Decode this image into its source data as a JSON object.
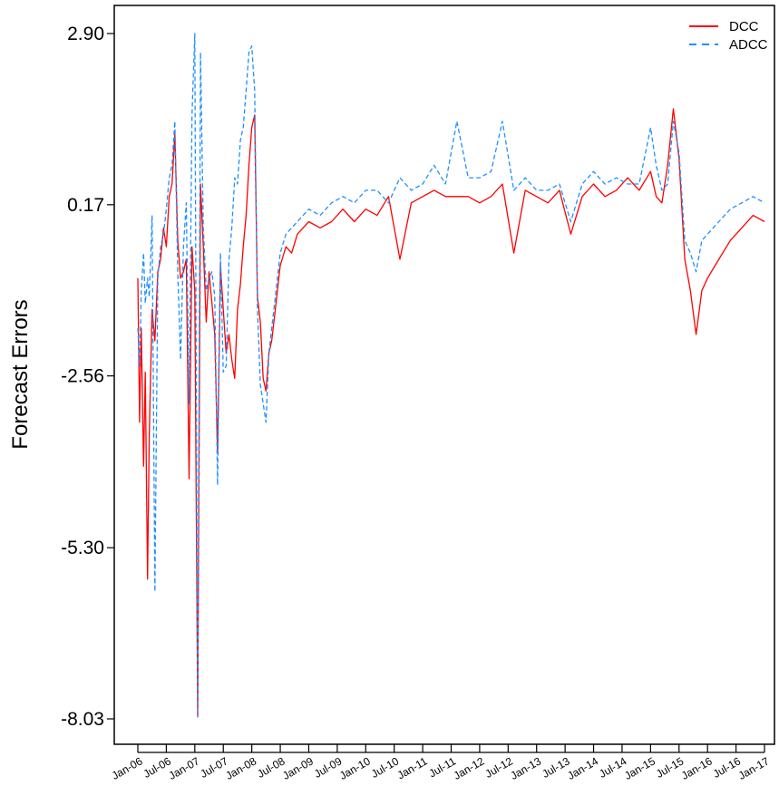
{
  "chart_data": {
    "type": "line",
    "title": "",
    "xlabel": "",
    "ylabel": "Forecast Errors",
    "ylim": [
      -8.6,
      3.4
    ],
    "yticks": [
      "2.90",
      "0.17",
      "-2.56",
      "-5.30",
      "-8.03"
    ],
    "ytick_values": [
      2.9,
      0.17,
      -2.56,
      -5.3,
      -8.03
    ],
    "xticks": [
      "Jan-06",
      "Jul-06",
      "Jan-07",
      "Jul-07",
      "Jan-08",
      "Jul-08",
      "Jan-09",
      "Jul-09",
      "Jan-10",
      "Jul-10",
      "Jan-11",
      "Jul-11",
      "Jan-12",
      "Jul-12",
      "Jan-13",
      "Jul-13",
      "Jan-14",
      "Jul-14",
      "Jan-15",
      "Jul-15",
      "Jan-16",
      "Jul-16",
      "Jan-17"
    ],
    "legend": "top-right",
    "grid": false,
    "series": [
      {
        "name": "DCC",
        "color": "#ff0000",
        "style": "solid",
        "t": [
          0,
          0.03,
          0.06,
          0.1,
          0.13,
          0.17,
          0.2,
          0.25,
          0.3,
          0.35,
          0.4,
          0.45,
          0.5,
          0.55,
          0.6,
          0.65,
          0.7,
          0.75,
          0.8,
          0.85,
          0.9,
          0.95,
          1.0,
          1.05,
          1.1,
          1.15,
          1.2,
          1.25,
          1.3,
          1.35,
          1.4,
          1.45,
          1.5,
          1.55,
          1.6,
          1.65,
          1.7,
          1.75,
          1.8,
          1.85,
          1.9,
          1.95,
          2.0,
          2.05,
          2.1,
          2.15,
          2.2,
          2.25,
          2.3,
          2.35,
          2.4,
          2.5,
          2.6,
          2.7,
          2.8,
          2.9,
          3.0,
          3.2,
          3.4,
          3.6,
          3.8,
          4.0,
          4.2,
          4.4,
          4.6,
          4.8,
          5.0,
          5.2,
          5.4,
          5.6,
          5.8,
          6.0,
          6.2,
          6.4,
          6.6,
          6.8,
          7.0,
          7.2,
          7.4,
          7.6,
          7.8,
          8.0,
          8.2,
          8.4,
          8.6,
          8.8,
          9.0,
          9.1,
          9.2,
          9.3,
          9.4,
          9.5,
          9.6,
          9.7,
          9.8,
          9.9,
          10.0,
          10.2,
          10.4,
          10.6,
          10.8,
          11.0
        ],
        "values": [
          -1.0,
          -3.3,
          -1.8,
          -4.0,
          -2.5,
          -5.8,
          -3.5,
          -1.5,
          -2.0,
          -0.9,
          -0.7,
          -0.2,
          -0.5,
          0.3,
          0.5,
          1.3,
          -0.4,
          -1.0,
          -0.9,
          -0.7,
          -4.2,
          -0.5,
          -1.2,
          -8.0,
          0.5,
          -0.5,
          -1.7,
          -0.9,
          -1.4,
          -1.9,
          -3.8,
          -0.8,
          -1.5,
          -2.2,
          -1.9,
          -2.3,
          -2.6,
          -1.5,
          -1.1,
          -0.5,
          0.0,
          0.8,
          1.4,
          1.6,
          -1.3,
          -1.7,
          -2.6,
          -2.8,
          -2.2,
          -2.0,
          -1.6,
          -0.8,
          -0.5,
          -0.6,
          -0.3,
          -0.2,
          -0.1,
          -0.2,
          -0.1,
          0.1,
          -0.1,
          0.1,
          0.0,
          0.3,
          -0.7,
          0.2,
          0.3,
          0.4,
          0.3,
          0.3,
          0.3,
          0.2,
          0.3,
          0.5,
          -0.6,
          0.4,
          0.3,
          0.2,
          0.4,
          -0.3,
          0.3,
          0.5,
          0.3,
          0.4,
          0.6,
          0.4,
          0.7,
          0.3,
          0.2,
          0.8,
          1.7,
          0.9,
          -0.7,
          -1.2,
          -1.9,
          -1.2,
          -1.0,
          -0.7,
          -0.4,
          -0.2,
          0.0,
          -0.1
        ]
      },
      {
        "name": "ADCC",
        "color": "#1e90ff",
        "style": "dashed",
        "t": [
          0,
          0.03,
          0.06,
          0.1,
          0.13,
          0.17,
          0.2,
          0.25,
          0.3,
          0.35,
          0.4,
          0.45,
          0.5,
          0.55,
          0.6,
          0.65,
          0.7,
          0.75,
          0.8,
          0.85,
          0.9,
          0.95,
          1.0,
          1.05,
          1.1,
          1.15,
          1.2,
          1.25,
          1.3,
          1.35,
          1.4,
          1.45,
          1.5,
          1.55,
          1.6,
          1.65,
          1.7,
          1.75,
          1.8,
          1.85,
          1.9,
          1.95,
          2.0,
          2.05,
          2.1,
          2.15,
          2.2,
          2.25,
          2.3,
          2.35,
          2.4,
          2.5,
          2.6,
          2.7,
          2.8,
          2.9,
          3.0,
          3.2,
          3.4,
          3.6,
          3.8,
          4.0,
          4.2,
          4.4,
          4.6,
          4.8,
          5.0,
          5.2,
          5.4,
          5.6,
          5.8,
          6.0,
          6.2,
          6.4,
          6.6,
          6.8,
          7.0,
          7.2,
          7.4,
          7.6,
          7.8,
          8.0,
          8.2,
          8.4,
          8.6,
          8.8,
          9.0,
          9.1,
          9.2,
          9.3,
          9.4,
          9.5,
          9.6,
          9.7,
          9.8,
          9.9,
          10.0,
          10.2,
          10.4,
          10.6,
          10.8,
          11.0
        ],
        "values": [
          -1.8,
          -2.4,
          -1.2,
          -0.6,
          -1.4,
          -1.0,
          -1.3,
          0.0,
          -6.0,
          -1.0,
          -0.5,
          -0.3,
          0.1,
          0.6,
          0.8,
          1.5,
          -0.9,
          -2.3,
          -0.5,
          0.2,
          -3.0,
          1.6,
          2.9,
          -8.0,
          2.6,
          -0.2,
          -1.2,
          -1.0,
          -0.9,
          -1.3,
          -4.3,
          -0.6,
          -2.5,
          -2.4,
          -0.7,
          -0.2,
          0.6,
          0.5,
          1.2,
          1.4,
          2.0,
          2.6,
          2.7,
          2.0,
          -1.5,
          -2.7,
          -3.0,
          -3.3,
          -2.2,
          -1.8,
          -1.4,
          -0.6,
          -0.3,
          -0.2,
          -0.1,
          0.0,
          0.1,
          0.0,
          0.2,
          0.3,
          0.2,
          0.4,
          0.4,
          0.2,
          0.6,
          0.4,
          0.5,
          0.8,
          0.5,
          1.5,
          0.6,
          0.6,
          0.7,
          1.5,
          0.4,
          0.6,
          0.4,
          0.4,
          0.5,
          -0.1,
          0.5,
          0.7,
          0.5,
          0.6,
          0.5,
          0.5,
          1.4,
          0.8,
          0.4,
          0.5,
          1.5,
          1.0,
          -0.4,
          -0.6,
          -0.9,
          -0.4,
          -0.3,
          -0.1,
          0.1,
          0.2,
          0.3,
          0.2
        ]
      }
    ]
  }
}
